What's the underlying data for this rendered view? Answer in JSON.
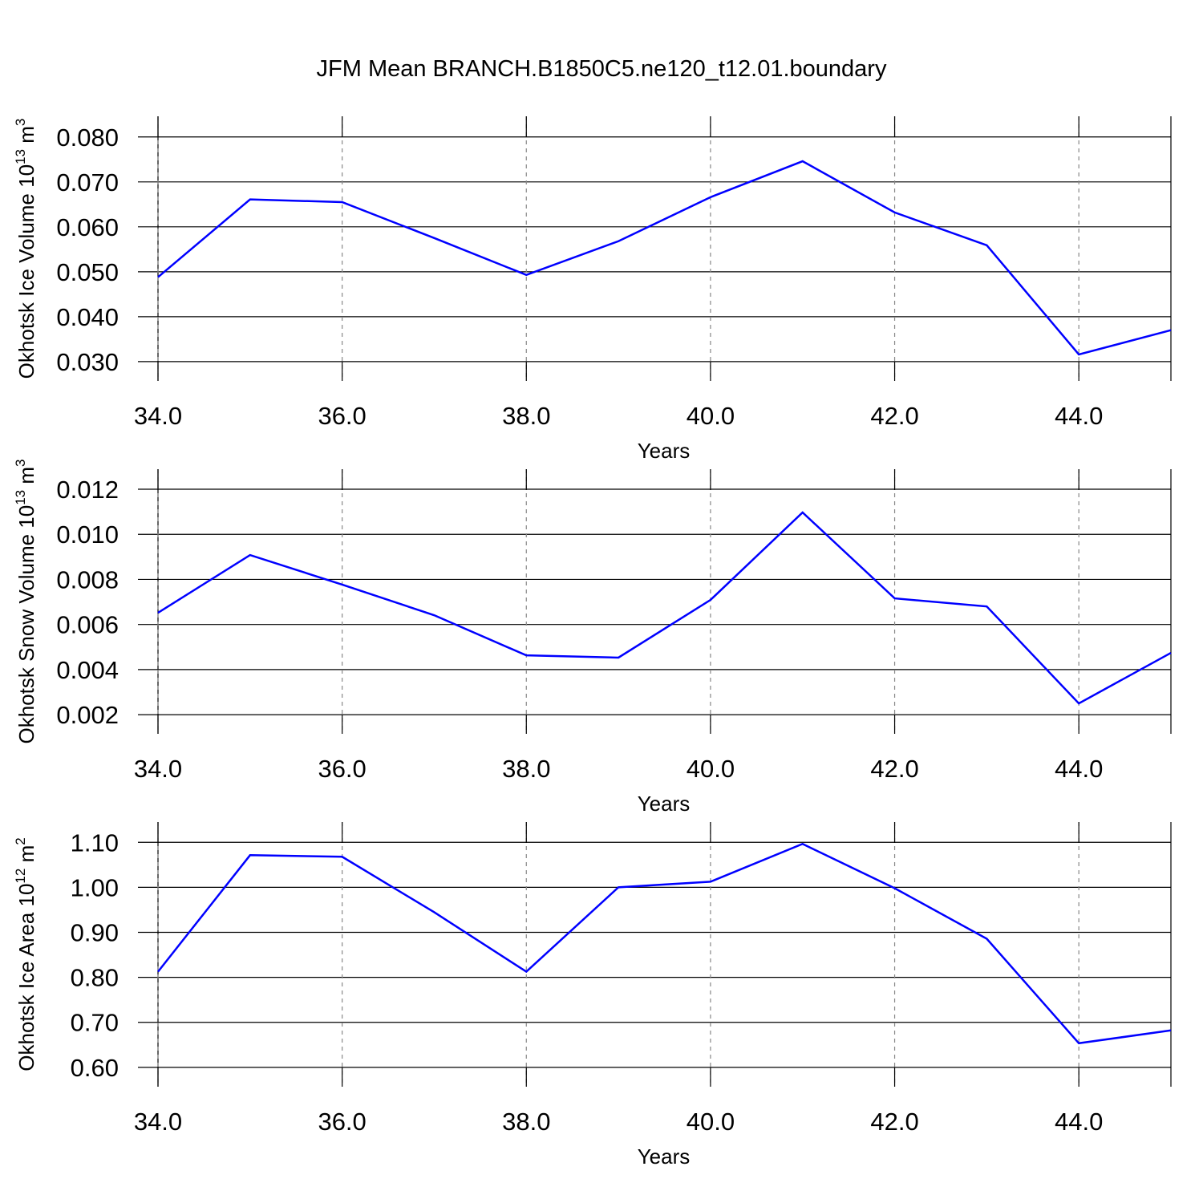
{
  "chart_data": [
    {
      "type": "line",
      "title": "JFM Mean BRANCH.B1850C5.ne120_t12.01.boundary",
      "ylabel": {
        "text": "Okhotsk Ice Volume 10",
        "exp": "13",
        "unit": " m",
        "unit_exp": "3"
      },
      "xlabel": "Years",
      "x": [
        34,
        35,
        36,
        37,
        38,
        39,
        40,
        41,
        42,
        43,
        44,
        45
      ],
      "series": [
        {
          "color": "#0000ff",
          "values": [
            0.0488,
            0.0661,
            0.0655,
            0.0575,
            0.0493,
            0.0568,
            0.0666,
            0.0746,
            0.0632,
            0.0559,
            0.0316,
            0.037
          ]
        }
      ],
      "xlim": [
        34,
        45
      ],
      "xticks": [
        {
          "value": 34,
          "label": "34.0"
        },
        {
          "value": 36,
          "label": "36.0"
        },
        {
          "value": 38,
          "label": "38.0"
        },
        {
          "value": 40,
          "label": "40.0"
        },
        {
          "value": 42,
          "label": "42.0"
        },
        {
          "value": 44,
          "label": "44.0"
        }
      ],
      "ylim": [
        0.0257,
        0.0846
      ],
      "yticks": [
        {
          "value": 0.03,
          "label": "0.030"
        },
        {
          "value": 0.04,
          "label": "0.040"
        },
        {
          "value": 0.05,
          "label": "0.050"
        },
        {
          "value": 0.06,
          "label": "0.060"
        },
        {
          "value": 0.07,
          "label": "0.070"
        },
        {
          "value": 0.08,
          "label": "0.080"
        }
      ]
    },
    {
      "type": "line",
      "ylabel": {
        "text": "Okhotsk Snow Volume 10",
        "exp": "13",
        "unit": " m",
        "unit_exp": "3"
      },
      "xlabel": "Years",
      "x": [
        34,
        35,
        36,
        37,
        38,
        39,
        40,
        41,
        42,
        43,
        44,
        45
      ],
      "series": [
        {
          "color": "#0000ff",
          "values": [
            0.00652,
            0.00908,
            0.00777,
            0.00641,
            0.00463,
            0.00453,
            0.00709,
            0.01097,
            0.00716,
            0.0068,
            0.0025,
            0.00474
          ]
        }
      ],
      "xlim": [
        34,
        45
      ],
      "xticks": [
        {
          "value": 34,
          "label": "34.0"
        },
        {
          "value": 36,
          "label": "36.0"
        },
        {
          "value": 38,
          "label": "38.0"
        },
        {
          "value": 40,
          "label": "40.0"
        },
        {
          "value": 42,
          "label": "42.0"
        },
        {
          "value": 44,
          "label": "44.0"
        }
      ],
      "ylim": [
        0.00115,
        0.01289
      ],
      "yticks": [
        0.002,
        0.004,
        0.006,
        0.008,
        {
          "value": 0.01,
          "label": "0.010"
        },
        0.012
      ]
    },
    {
      "type": "line",
      "ylabel": {
        "text": "Okhotsk Ice Area 10",
        "exp": "12",
        "unit": " m",
        "unit_exp": "2"
      },
      "xlabel": "Years",
      "x": [
        34,
        35,
        36,
        37,
        38,
        39,
        40,
        41,
        42,
        43,
        44,
        45
      ],
      "series": [
        {
          "color": "#0000ff",
          "values": [
            0.8125,
            1.0714,
            1.0679,
            0.9446,
            0.8125,
            1.0,
            1.0125,
            1.0964,
            0.998,
            0.8857,
            0.6536,
            0.6821
          ]
        }
      ],
      "xlim": [
        34,
        45
      ],
      "xticks": [
        {
          "value": 34,
          "label": "34.0"
        },
        {
          "value": 36,
          "label": "36.0"
        },
        {
          "value": 38,
          "label": "38.0"
        },
        {
          "value": 40,
          "label": "40.0"
        },
        {
          "value": 42,
          "label": "42.0"
        },
        {
          "value": 44,
          "label": "44.0"
        }
      ],
      "ylim": [
        0.557,
        1.145
      ],
      "yticks": [
        {
          "value": 0.6,
          "label": "0.60"
        },
        {
          "value": 0.7,
          "label": "0.70"
        },
        {
          "value": 0.8,
          "label": "0.80"
        },
        {
          "value": 0.9,
          "label": "0.90"
        },
        {
          "value": 1.0,
          "label": "1.00"
        },
        {
          "value": 1.1,
          "label": "1.10"
        }
      ]
    }
  ]
}
